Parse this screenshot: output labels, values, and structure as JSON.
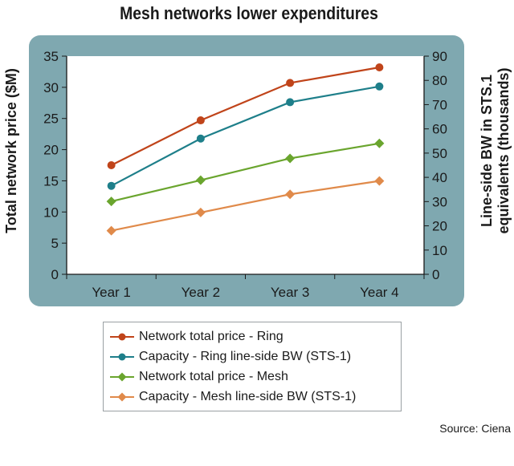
{
  "title": "Mesh networks lower expenditures",
  "source": "Source: Ciena",
  "chart_data": {
    "type": "line",
    "title": "Mesh networks lower expenditures",
    "categories": [
      "Year 1",
      "Year 2",
      "Year 3",
      "Year 4"
    ],
    "ylabel_left": "Total network price ($M)",
    "ylabel_right_line1": "Line-side BW in STS.1",
    "ylabel_right_line2": "equivalents (thousands)",
    "ylim_left": [
      0,
      35
    ],
    "ylim_right": [
      0,
      90
    ],
    "yticks_left": [
      "0",
      "5",
      "10",
      "15",
      "20",
      "25",
      "30",
      "35"
    ],
    "yticks_right": [
      "0",
      "10",
      "20",
      "30",
      "40",
      "50",
      "60",
      "70",
      "80",
      "90"
    ],
    "grid": false,
    "legend_position": "bottom",
    "series": [
      {
        "name": "Network total price - Ring",
        "axis": "left",
        "color": "#c0441a",
        "values": [
          17.5,
          24.7,
          30.7,
          33.2
        ]
      },
      {
        "name": "Capacity - Ring line-side BW (STS-1)",
        "axis": "right",
        "color": "#1e7f8a",
        "values": [
          36.5,
          56,
          71,
          77.5
        ]
      },
      {
        "name": "Network total price - Mesh",
        "axis": "left",
        "color": "#6aa52e",
        "values": [
          11.7,
          15.1,
          18.6,
          21.0
        ]
      },
      {
        "name": "Capacity - Mesh line-side BW (STS-1)",
        "axis": "right",
        "color": "#e08a4a",
        "values": [
          18,
          25.5,
          33,
          38.5
        ]
      }
    ]
  }
}
